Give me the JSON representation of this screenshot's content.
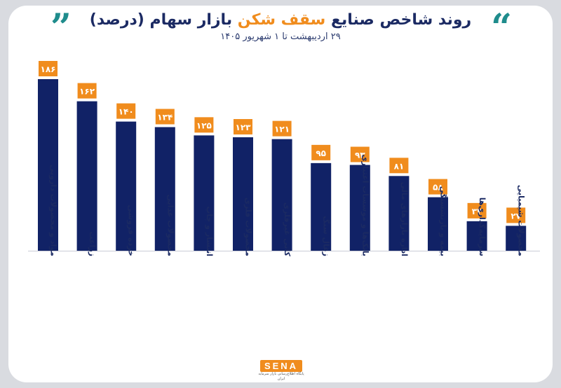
{
  "header": {
    "title_part1": "روند شاخص صنایع",
    "title_highlight": "سقف شکن",
    "title_part2": "بازار سهام (درصد)",
    "subtitle": "۲۹ اردیبهشت تا ۱ شهریور ۱۴۰۵",
    "quote_open": "”",
    "quote_close": "“"
  },
  "logo": {
    "text": "SENA",
    "tagline": "پایگاه اطلاع‌رسانی بازار سرمایه ایران"
  },
  "colors": {
    "bar": "#112266",
    "label_bg": "#f08c1d",
    "label_text": "#ffffff",
    "accent": "#1f8c8c"
  },
  "chart_data": {
    "type": "bar",
    "categories": [
      "مواد و محصولات دارویی",
      "زراعت",
      "خرده فروشی",
      "محصولات غذایی",
      "انتشار و چاپ",
      "محصولات فلزی",
      "کانی غیرفلزی",
      "زغال سنگ",
      "بانک‌ها و موسسات اعتباری",
      "اداره بازارهای مالی",
      "بیمه و بازنشستگی",
      "سرمایه‌گذاری‌ها",
      "محصولات شیمیایی"
    ],
    "values": [
      186,
      162,
      140,
      134,
      125,
      123,
      121,
      95,
      93,
      81,
      58,
      32,
      27
    ],
    "value_labels": [
      "۱۸۶",
      "۱۶۲",
      "۱۴۰",
      "۱۳۴",
      "۱۲۵",
      "۱۲۳",
      "۱۲۱",
      "۹۵",
      "۹۳",
      "۸۱",
      "۵۸",
      "۳۲",
      "۲۷"
    ],
    "ylim": [
      0,
      186
    ],
    "grid": false,
    "legend": "none"
  }
}
